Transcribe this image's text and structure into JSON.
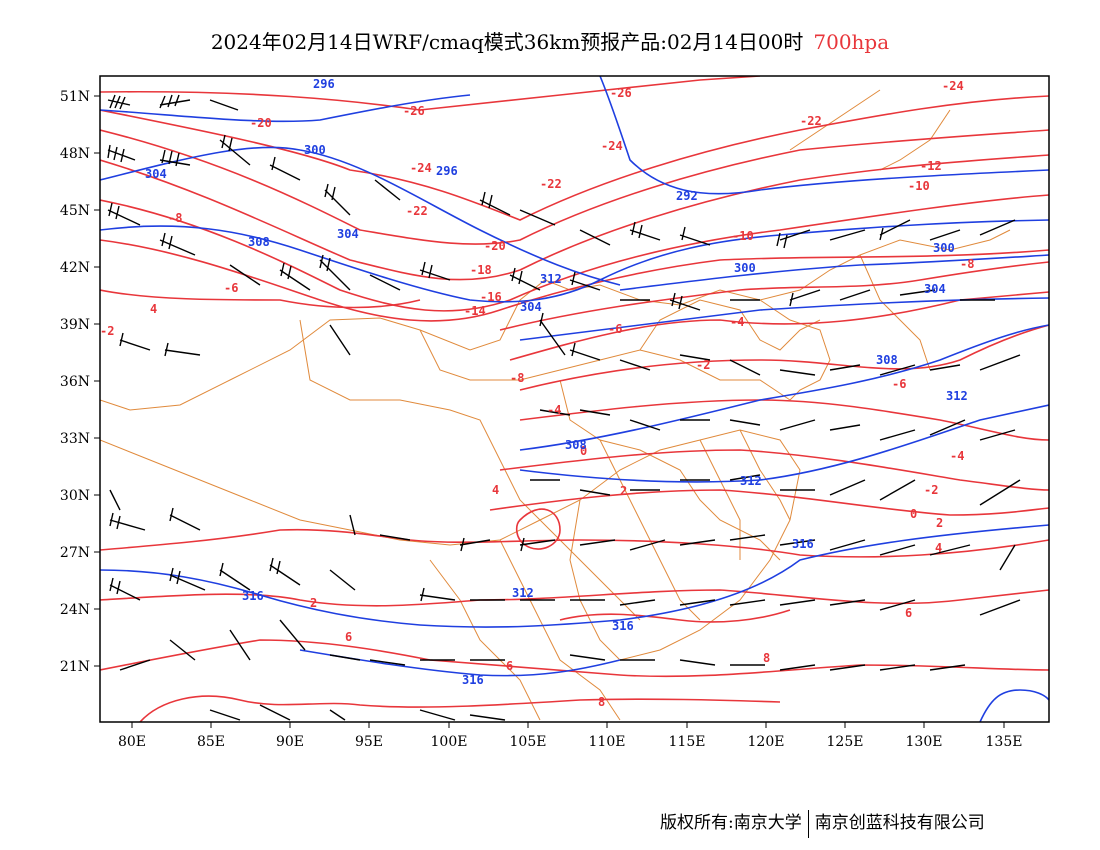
{
  "title": {
    "text": "2024年02月14日WRF/cmaq模式36km预报产品:02月14日00时",
    "level": "700hpa",
    "level_color": "#e8363b"
  },
  "axes": {
    "lat_labels": [
      "51N",
      "48N",
      "45N",
      "42N",
      "39N",
      "36N",
      "33N",
      "30N",
      "27N",
      "24N",
      "21N"
    ],
    "lon_labels": [
      "80E",
      "85E",
      "90E",
      "95E",
      "100E",
      "105E",
      "110E",
      "115E",
      "120E",
      "125E",
      "130E",
      "135E"
    ]
  },
  "colors": {
    "temperature": "#e8363b",
    "height": "#1f3fe0",
    "border": "#e08a3c",
    "barb": "#000000"
  },
  "temperature_labels": [
    "-26",
    "-26",
    "-24",
    "-24",
    "-24",
    "-22",
    "-22",
    "-22",
    "-20",
    "-20",
    "-18",
    "-16",
    "-14",
    "-12",
    "-10",
    "-10",
    "-8",
    "-8",
    "-8",
    "-6",
    "-6",
    "-6",
    "-4",
    "-4",
    "-4",
    "-2",
    "-2",
    "-2",
    "0",
    "0",
    "2",
    "2",
    "2",
    "4",
    "4",
    "4",
    "6",
    "6",
    "6",
    "8",
    "8"
  ],
  "height_labels": [
    "296",
    "296",
    "300",
    "300",
    "300",
    "304",
    "304",
    "304",
    "304",
    "308",
    "308",
    "308",
    "312",
    "312",
    "312",
    "312",
    "316",
    "316",
    "316",
    "316",
    "292"
  ],
  "footer": {
    "left": "版权所有:南京大学",
    "right": "南京创蓝科技有限公司"
  }
}
